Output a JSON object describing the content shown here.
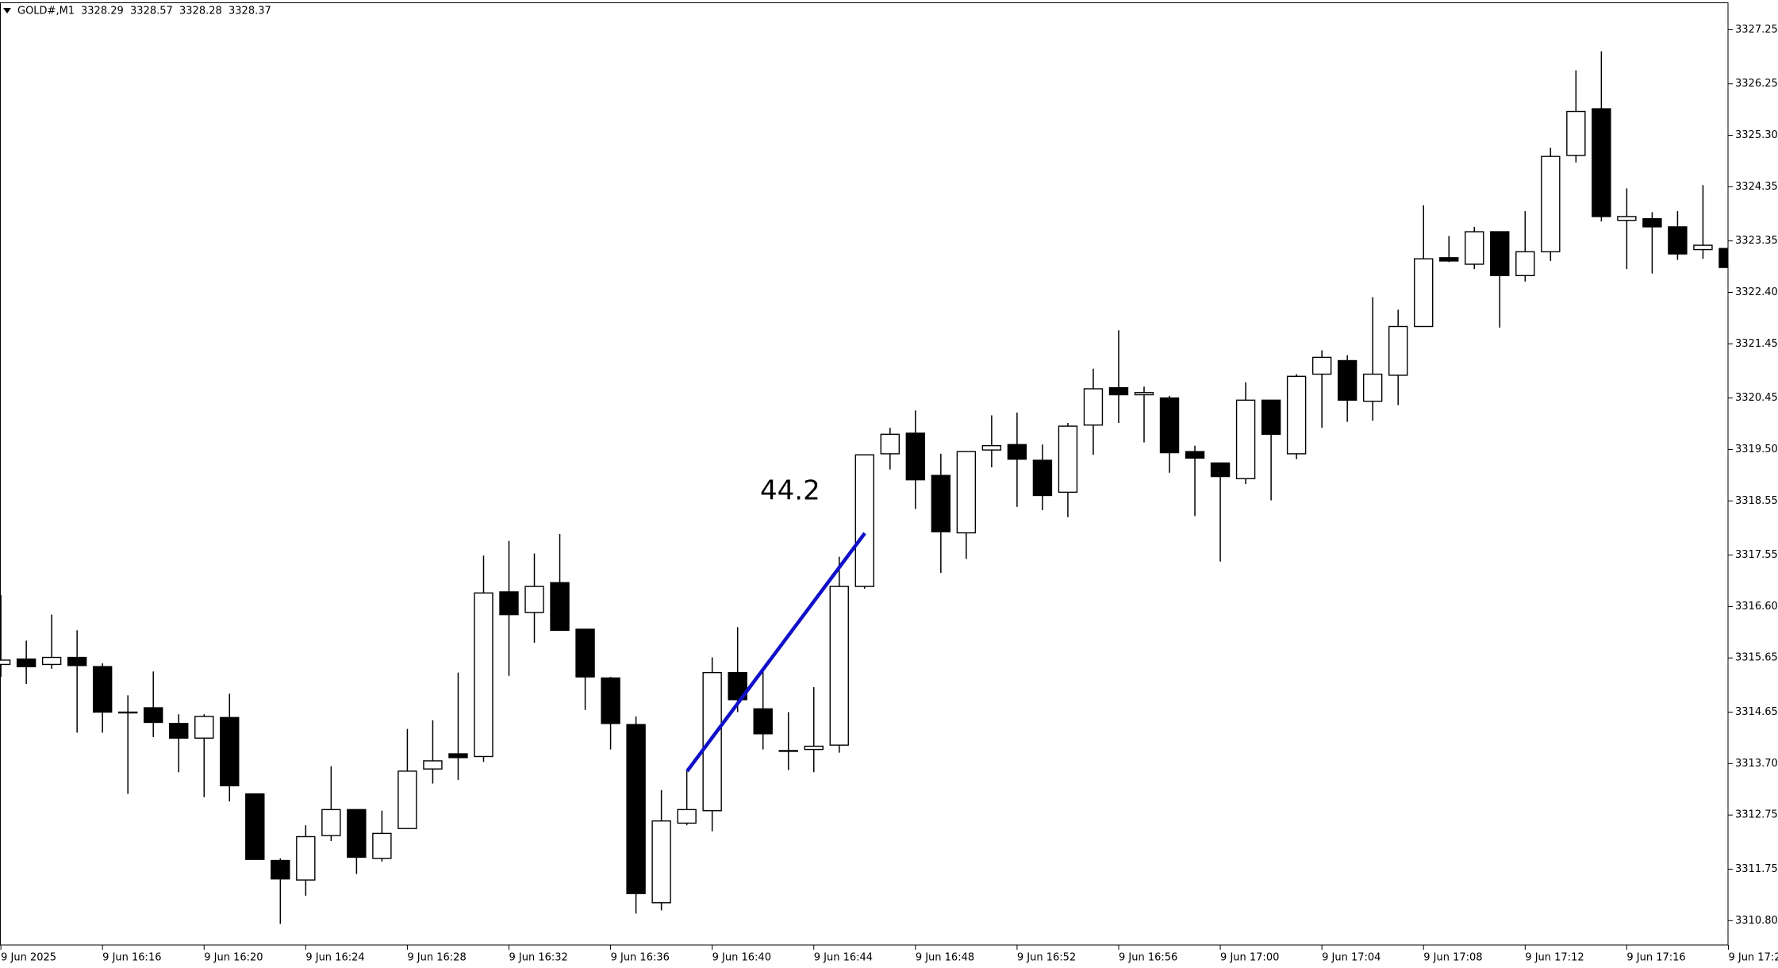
{
  "chart_data": {
    "type": "candlestick",
    "title": "GOLD#,M1",
    "quote": [
      3328.29,
      3328.57,
      3328.28,
      3328.37
    ],
    "categories": [
      "9 Jun 2025",
      null,
      null,
      null,
      "9 Jun 16:16",
      null,
      null,
      null,
      "9 Jun 16:20",
      null,
      null,
      null,
      "9 Jun 16:24",
      null,
      null,
      null,
      "9 Jun 16:28",
      null,
      null,
      null,
      "9 Jun 16:32",
      null,
      null,
      null,
      "9 Jun 16:36",
      null,
      null,
      null,
      "9 Jun 16:40",
      null,
      null,
      null,
      "9 Jun 16:44",
      null,
      null,
      null,
      "9 Jun 16:48",
      null,
      null,
      null,
      "9 Jun 16:52",
      null,
      null,
      null,
      "9 Jun 16:56",
      null,
      null,
      null,
      "9 Jun 17:00",
      null,
      null,
      null,
      "9 Jun 17:04",
      null,
      null,
      null,
      "9 Jun 17:08",
      null,
      null,
      null,
      "9 Jun 17:12",
      null,
      null,
      null,
      "9 Jun 17:16",
      null,
      null,
      null,
      "9 Jun 17:2"
    ],
    "open": [
      3315.53,
      3315.63,
      3315.53,
      3315.66,
      3315.49,
      3314.65,
      3314.73,
      3314.44,
      3314.17,
      3314.55,
      3313.14,
      3311.91,
      3311.55,
      3312.37,
      3312.85,
      3311.95,
      3312.5,
      3313.6,
      3313.88,
      3313.83,
      3316.87,
      3316.49,
      3317.04,
      3316.18,
      3315.28,
      3314.42,
      3311.13,
      3312.6,
      3312.83,
      3315.38,
      3314.71,
      3313.94,
      3313.96,
      3314.04,
      3316.97,
      3319.42,
      3319.8,
      3319.02,
      3317.96,
      3319.49,
      3319.59,
      3319.3,
      3318.71,
      3319.95,
      3320.64,
      3320.51,
      3320.45,
      3319.46,
      3319.25,
      3318.96,
      3320.41,
      3319.42,
      3320.89,
      3321.14,
      3320.39,
      3320.87,
      3321.77,
      3323.04,
      3322.92,
      3323.52,
      3322.71,
      3323.15,
      3324.93,
      3325.79,
      3323.73,
      3323.76,
      3323.61,
      3323.19,
      3323.21
    ],
    "high": [
      3316.81,
      3315.97,
      3316.45,
      3316.16,
      3315.55,
      3314.96,
      3315.4,
      3314.61,
      3314.61,
      3314.99,
      3313.14,
      3311.95,
      3312.56,
      3313.65,
      3312.85,
      3312.83,
      3314.34,
      3314.5,
      3315.38,
      3317.54,
      3317.81,
      3317.58,
      3317.94,
      3316.18,
      3315.3,
      3314.57,
      3313.21,
      3313.56,
      3315.66,
      3316.22,
      3315.45,
      3314.65,
      3315.11,
      3317.52,
      3319.4,
      3319.9,
      3320.22,
      3319.42,
      3319.46,
      3320.13,
      3320.18,
      3319.59,
      3319.99,
      3320.99,
      3321.7,
      3320.66,
      3320.49,
      3319.57,
      3319.25,
      3320.74,
      3320.41,
      3320.89,
      3321.33,
      3321.24,
      3322.31,
      3322.08,
      3324.01,
      3323.44,
      3323.61,
      3323.52,
      3323.9,
      3325.07,
      3326.5,
      3326.85,
      3324.32,
      3323.88,
      3323.9,
      3324.38,
      3323.61
    ],
    "low": [
      3315.3,
      3315.17,
      3315.45,
      3314.27,
      3314.27,
      3313.14,
      3314.19,
      3313.54,
      3313.08,
      3313.0,
      3311.93,
      3310.74,
      3311.26,
      3312.27,
      3311.66,
      3311.89,
      3312.5,
      3313.33,
      3313.4,
      3313.73,
      3315.32,
      3315.93,
      3316.16,
      3314.69,
      3313.96,
      3310.93,
      3310.99,
      3312.56,
      3312.45,
      3314.65,
      3313.96,
      3313.58,
      3313.54,
      3313.9,
      3316.93,
      3319.13,
      3318.4,
      3317.22,
      3317.48,
      3319.17,
      3318.44,
      3318.38,
      3318.25,
      3319.4,
      3319.99,
      3319.63,
      3319.07,
      3318.27,
      3317.43,
      3318.86,
      3318.56,
      3319.32,
      3319.9,
      3320.01,
      3320.03,
      3320.32,
      3321.77,
      3322.96,
      3322.83,
      3321.75,
      3322.6,
      3322.98,
      3324.8,
      3323.71,
      3322.83,
      3322.75,
      3323.0,
      3323.02,
      3322.77
    ],
    "close": [
      3315.61,
      3315.49,
      3315.66,
      3315.51,
      3314.65,
      3314.65,
      3314.46,
      3314.17,
      3314.57,
      3313.29,
      3311.93,
      3311.57,
      3312.35,
      3312.85,
      3311.97,
      3312.41,
      3313.56,
      3313.75,
      3313.81,
      3316.85,
      3316.45,
      3316.97,
      3316.16,
      3315.3,
      3314.44,
      3311.3,
      3312.64,
      3312.85,
      3315.38,
      3314.88,
      3314.25,
      3313.94,
      3314.02,
      3316.97,
      3319.4,
      3319.78,
      3318.94,
      3317.98,
      3319.46,
      3319.57,
      3319.32,
      3318.65,
      3319.93,
      3320.62,
      3320.51,
      3320.55,
      3319.44,
      3319.34,
      3319.0,
      3320.41,
      3319.78,
      3320.85,
      3321.2,
      3320.41,
      3320.89,
      3321.77,
      3323.02,
      3322.98,
      3323.52,
      3322.71,
      3323.15,
      3324.91,
      3325.74,
      3323.8,
      3323.8,
      3323.61,
      3323.11,
      3323.27,
      3322.86
    ],
    "up_color": "#ffffff",
    "down_color": "#000000",
    "ylim": [
      3310.35,
      3327.74
    ],
    "yticks": [
      3327.25,
      3326.25,
      {
        "value": 3325.3,
        "label": "3325.30"
      },
      3324.35,
      3323.35,
      {
        "value": 3322.4,
        "label": "3322.40"
      },
      3321.45,
      3320.45,
      {
        "value": 3319.5,
        "label": "3319.50"
      },
      3318.55,
      3317.55,
      {
        "value": 3316.6,
        "label": "3316.60"
      },
      3315.65,
      3314.65,
      {
        "value": 3313.7,
        "label": "3313.70"
      },
      3312.75,
      3311.75,
      {
        "value": 3310.8,
        "label": "3310.80"
      }
    ],
    "grid": false,
    "annotations": [
      {
        "text": "44.2",
        "color": "#1010c8"
      }
    ]
  }
}
